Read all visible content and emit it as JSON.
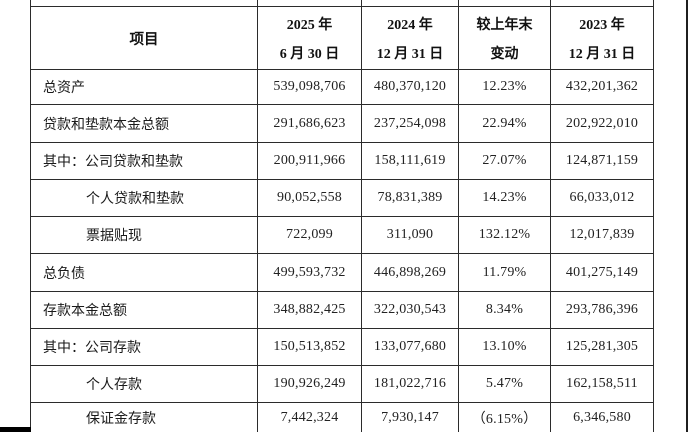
{
  "table": {
    "header": {
      "item_label": "项目",
      "columns": [
        {
          "line1": "2025 年",
          "line2": "6 月 30 日"
        },
        {
          "line1": "2024 年",
          "line2": "12 月 31 日"
        },
        {
          "line1": "较上年末",
          "line2": "变动"
        },
        {
          "line1": "2023 年",
          "line2": "12 月 31 日"
        }
      ]
    },
    "rows": [
      {
        "label": "总资产",
        "values": [
          "539,098,706",
          "480,370,120",
          "12.23%",
          "432,201,362"
        ]
      },
      {
        "label": "贷款和垫款本金总额",
        "values": [
          "291,686,623",
          "237,254,098",
          "22.94%",
          "202,922,010"
        ]
      },
      {
        "label": "其中：公司贷款和垫款",
        "values": [
          "200,911,966",
          "158,111,619",
          "27.07%",
          "124,871,159"
        ]
      },
      {
        "label": "个人贷款和垫款",
        "values": [
          "90,052,558",
          "78,831,389",
          "14.23%",
          "66,033,012"
        ]
      },
      {
        "label": "票据贴现",
        "values": [
          "722,099",
          "311,090",
          "132.12%",
          "12,017,839"
        ]
      },
      {
        "label": "总负债",
        "values": [
          "499,593,732",
          "446,898,269",
          "11.79%",
          "401,275,149"
        ]
      },
      {
        "label": "存款本金总额",
        "values": [
          "348,882,425",
          "322,030,543",
          "8.34%",
          "293,786,396"
        ]
      },
      {
        "label": "其中：公司存款",
        "values": [
          "150,513,852",
          "133,077,680",
          "13.10%",
          "125,281,305"
        ]
      },
      {
        "label": "个人存款",
        "values": [
          "190,926,249",
          "181,022,716",
          "5.47%",
          "162,158,511"
        ]
      },
      {
        "label": "保证金存款",
        "values": [
          "7,442,324",
          "7,930,147",
          "（6.15%）",
          "6,346,580"
        ]
      }
    ]
  }
}
